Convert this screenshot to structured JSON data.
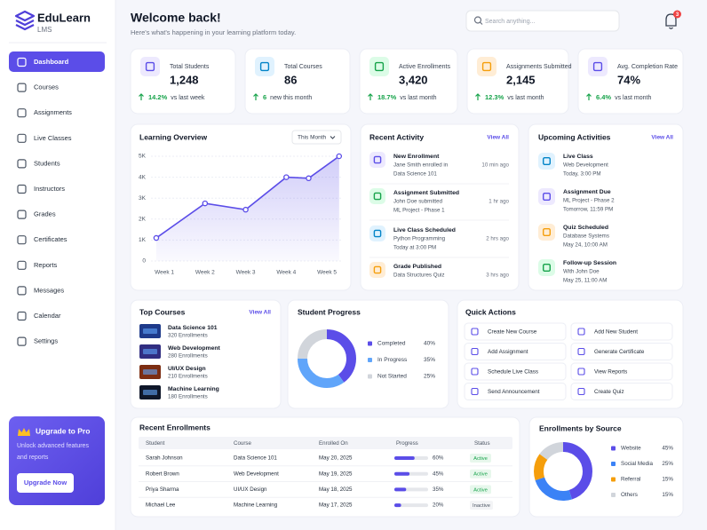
{
  "sidebar": {
    "brand": "EduLearn",
    "sub": "LMS",
    "nav": [
      "Dashboard",
      "Courses",
      "Assignments",
      "Live Classes",
      "Students",
      "Instructors",
      "Grades",
      "Certificates",
      "Reports",
      "Messages",
      "Calendar",
      "Settings"
    ],
    "upgrade": {
      "title": "Upgrade to Pro",
      "text": [
        "Unlock advanced features",
        "and reports"
      ],
      "button": "Upgrade Now"
    }
  },
  "header": {
    "title": "Welcome back!",
    "subtitle": "Here's what's happening in your learning platform today.",
    "search": "Search anything...",
    "badge": "3"
  },
  "stats": [
    {
      "label": "Total Students",
      "value": "1,248",
      "trend": "14.2%",
      "note": "vs last week"
    },
    {
      "label": "Total Courses",
      "value": "86",
      "trend": "6",
      "note": "new this month"
    },
    {
      "label": "Active Enrollments",
      "value": "3,420",
      "trend": "18.7%",
      "note": "vs last month"
    },
    {
      "label": "Assignments Submitted",
      "value": "2,145",
      "trend": "12.3%",
      "note": "vs last month"
    },
    {
      "label": "Avg. Completion Rate",
      "value": "74%",
      "trend": "6.4%",
      "note": "vs last month"
    }
  ],
  "learning_overview": {
    "type": "line",
    "title": "Learning Overview",
    "period": "This Month",
    "x": [
      0.8,
      2,
      3,
      4,
      4.55,
      5.3
    ],
    "values": [
      1100,
      2750,
      2450,
      4000,
      3950,
      5000
    ],
    "xlim": [
      0.67,
      5.37
    ],
    "xticks": [
      {
        "value": 1,
        "label": "Week 1"
      },
      {
        "value": 2,
        "label": "Week 2"
      },
      {
        "value": 3,
        "label": "Week 3"
      },
      {
        "value": 4,
        "label": "Week 4"
      },
      {
        "value": 5,
        "label": "Week 5"
      }
    ],
    "ylim": [
      0,
      5000
    ],
    "yticks": [
      0,
      {
        "value": 1000,
        "label": "1K"
      },
      {
        "value": 2000,
        "label": "2K"
      },
      {
        "value": 3000,
        "label": "3K"
      },
      {
        "value": 4000,
        "label": "4K"
      },
      {
        "value": 5000,
        "label": "5K"
      }
    ],
    "color": "#5b4de8",
    "grid": true
  },
  "recent_activity": {
    "title": "Recent Activity",
    "link": "View All",
    "items": [
      {
        "title": "New Enrollment",
        "lines": [
          "Jane Smith enrolled in",
          "Data Science 101"
        ],
        "time": "10 min ago"
      },
      {
        "title": "Assignment Submitted",
        "lines": [
          "John Doe submitted",
          "ML Project - Phase 1"
        ],
        "time": "1 hr ago"
      },
      {
        "title": "Live Class Scheduled",
        "lines": [
          "Python Programming",
          "Today at 3:00 PM"
        ],
        "time": "2 hrs ago"
      },
      {
        "title": "Grade Published",
        "lines": [
          "Data Structures Quiz"
        ],
        "time": "3 hrs ago"
      }
    ]
  },
  "upcoming": {
    "title": "Upcoming Activities",
    "link": "View All",
    "items": [
      {
        "title": "Live Class",
        "lines": [
          "Web Development",
          "Today, 3:00 PM"
        ]
      },
      {
        "title": "Assignment Due",
        "lines": [
          "ML Project - Phase 2",
          "Tomorrow, 11:59 PM"
        ]
      },
      {
        "title": "Quiz Scheduled",
        "lines": [
          "Database Systems",
          "May 24, 10:00 AM"
        ]
      },
      {
        "title": "Follow-up Session",
        "lines": [
          "With John Doe",
          "May 25, 11:00 AM"
        ]
      }
    ]
  },
  "top_courses": {
    "title": "Top Courses",
    "link": "View All",
    "items": [
      {
        "name": "Data Science 101",
        "sub": "320 Enrollments"
      },
      {
        "name": "Web Development",
        "sub": "280 Enrollments"
      },
      {
        "name": "UI/UX Design",
        "sub": "210 Enrollments"
      },
      {
        "name": "Machine Learning",
        "sub": "180 Enrollments"
      }
    ]
  },
  "student_progress": {
    "type": "pie",
    "title": "Student Progress",
    "categories": [
      "Completed",
      "In Progress",
      "Not Started"
    ],
    "values": [
      40,
      35,
      25
    ],
    "value_labels": [
      "40%",
      "35%",
      "25%"
    ],
    "colors": [
      "#5b4de8",
      "#60a5fa",
      "#d1d5db"
    ]
  },
  "quick_actions": {
    "title": "Quick Actions",
    "items": [
      "Create New Course",
      "Add New Student",
      "Add Assignment",
      "Generate Certificate",
      "Schedule Live Class",
      "View Reports",
      "Send Announcement",
      "Create Quiz"
    ]
  },
  "recent_enrollments": {
    "title": "Recent Enrollments",
    "columns": [
      "Student",
      "Course",
      "Enrolled On",
      "Progress",
      "Status"
    ],
    "progress_max": 100,
    "rows": [
      {
        "student": "Sarah Johnson",
        "course": "Data Science 101",
        "date": "May 20, 2025",
        "progress": 60,
        "progress_label": "60%",
        "status": "Active"
      },
      {
        "student": "Robert Brown",
        "course": "Web Development",
        "date": "May 19, 2025",
        "progress": 45,
        "progress_label": "45%",
        "status": "Active"
      },
      {
        "student": "Priya Sharma",
        "course": "UI/UX Design",
        "date": "May 18, 2025",
        "progress": 35,
        "progress_label": "35%",
        "status": "Active"
      },
      {
        "student": "Michael Lee",
        "course": "Machine Learning",
        "date": "May 17, 2025",
        "progress": 20,
        "progress_label": "20%",
        "status": "Inactive"
      }
    ]
  },
  "enrollments_by_source": {
    "type": "pie",
    "title": "Enrollments by Source",
    "categories": [
      "Website",
      "Social Media",
      "Referral",
      "Others"
    ],
    "values": [
      45,
      25,
      15,
      15
    ],
    "value_labels": [
      "45%",
      "25%",
      "15%",
      "15%"
    ],
    "colors": [
      "#5b4de8",
      "#3b82f6",
      "#f59e0b",
      "#d1d5db"
    ]
  }
}
